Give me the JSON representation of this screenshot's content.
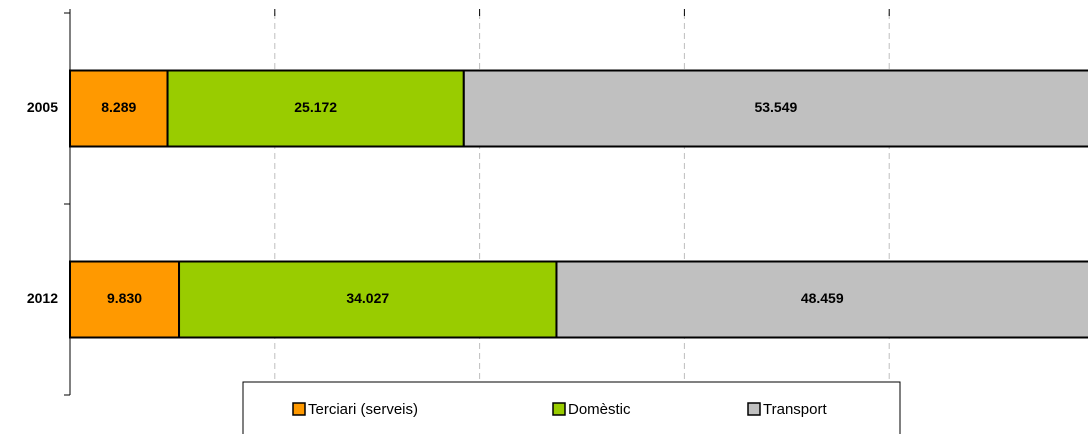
{
  "chart_data": {
    "type": "bar",
    "stacking": "percent",
    "orientation": "horizontal",
    "categories": [
      "2005",
      "2012"
    ],
    "series": [
      {
        "name": "Terciari (serveis)",
        "color": "#ff9900",
        "values": [
          8289,
          9830
        ],
        "value_labels": [
          "8.289",
          "9.830"
        ]
      },
      {
        "name": "Domèstic",
        "color": "#99cc00",
        "values": [
          25172,
          34027
        ],
        "value_labels": [
          "25.172",
          "34.027"
        ]
      },
      {
        "name": "Transport",
        "color": "#c0c0c0",
        "values": [
          53549,
          48459
        ],
        "value_labels": [
          "53.549",
          "48.459"
        ]
      }
    ],
    "xlim": [
      0,
      100
    ],
    "xticks": [
      0,
      20,
      40,
      60,
      80,
      100
    ],
    "grid": true,
    "legend": "bottom"
  }
}
